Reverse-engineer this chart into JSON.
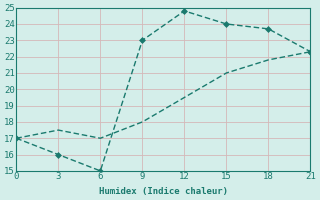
{
  "line1_x": [
    0,
    3,
    6,
    9,
    12,
    15,
    18,
    21
  ],
  "line1_y": [
    17,
    16,
    15,
    23,
    24.8,
    24,
    23.7,
    22.3
  ],
  "line2_x": [
    0,
    3,
    6,
    9,
    12,
    15,
    18,
    21
  ],
  "line2_y": [
    17,
    17.5,
    17,
    18,
    19.5,
    21,
    21.8,
    22.3
  ],
  "xlabel": "Humidex (Indice chaleur)",
  "xlim": [
    0,
    21
  ],
  "ylim": [
    15,
    25
  ],
  "xticks": [
    0,
    3,
    6,
    9,
    12,
    15,
    18,
    21
  ],
  "yticks": [
    15,
    16,
    17,
    18,
    19,
    20,
    21,
    22,
    23,
    24,
    25
  ],
  "line_color": "#1a7a6e",
  "bg_color": "#d4eeea",
  "grid_color": "#c8e8e3",
  "font_family": "monospace"
}
